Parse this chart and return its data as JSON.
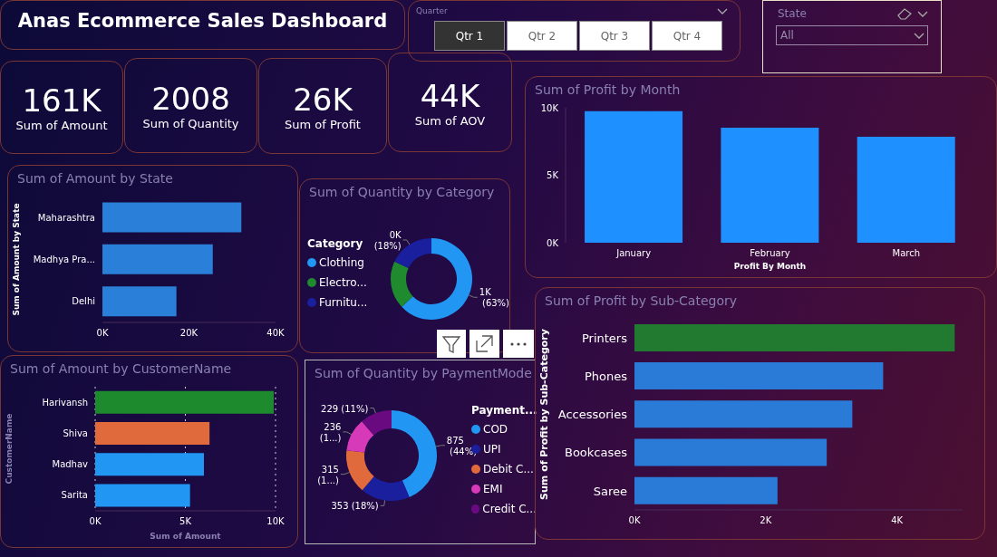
{
  "chart_data": [
    {
      "type": "other",
      "title": "Anas Ecommerce Sales Dashboard"
    },
    {
      "type": "other",
      "title": "Quarter",
      "annotations": [
        "Qtr 1",
        "Qtr 2",
        "Qtr 3",
        "Qtr 4"
      ]
    },
    {
      "type": "other",
      "title": "State",
      "annotations": [
        "All"
      ]
    },
    {
      "type": "other",
      "title": "Sum of Amount",
      "annotations": [
        "161K"
      ]
    },
    {
      "type": "other",
      "title": "Sum of Quantity",
      "annotations": [
        "2008"
      ]
    },
    {
      "type": "other",
      "title": "Sum of Profit",
      "annotations": [
        "26K"
      ]
    },
    {
      "type": "other",
      "title": "Sum of AOV",
      "annotations": [
        "44K"
      ]
    },
    {
      "type": "bar",
      "title": "Sum of Profit by Month",
      "xlabel": "Profit By Month",
      "categories": [
        "January",
        "February",
        "March"
      ],
      "values": [
        9750,
        8530,
        7850
      ],
      "color": "#1e90ff",
      "ylim": [
        0,
        10000
      ],
      "yticks": [
        {
          "value": 0,
          "label": "0K"
        },
        {
          "value": 5000,
          "label": "5K"
        },
        {
          "value": 10000,
          "label": "10K"
        }
      ],
      "grid": false
    },
    {
      "type": "bar",
      "orientation": "horizontal",
      "title": "Sum of Amount by State",
      "ylabel": "Sum of Amount by State",
      "categories": [
        "Maharashtra",
        "Madhya Pra...",
        "Delhi"
      ],
      "values": [
        32100,
        25500,
        17100
      ],
      "color": "#2a7fd8",
      "xlim": [
        0,
        40000
      ],
      "xticks": [
        {
          "value": 0,
          "label": "0K"
        },
        {
          "value": 20000,
          "label": "20K"
        },
        {
          "value": 40000,
          "label": "40K"
        }
      ],
      "grid": false
    },
    {
      "type": "donut",
      "title": "Sum of Quantity by Category",
      "legend_title": "Category",
      "legend": "left",
      "categories": [
        "Clothing",
        "Electro...",
        "Furnitu..."
      ],
      "values": [
        63,
        19,
        18
      ],
      "colors": [
        "#2196f3",
        "#1f8a2e",
        "#1a1f9e"
      ],
      "value_labels": [
        "1K (63%)",
        null,
        "0K (18%)"
      ]
    },
    {
      "type": "bar",
      "orientation": "horizontal",
      "title": "Sum of Amount by CustomerName",
      "xlabel": "Sum of Amount",
      "ylabel": "CustomerName",
      "categories": [
        "Harivansh",
        "Shiva",
        "Madhav",
        "Sarita"
      ],
      "values": [
        9900,
        6340,
        6030,
        5260
      ],
      "colors": [
        "#1e8a2e",
        "#e06a3c",
        "#2196f3",
        "#2196f3"
      ],
      "xlim": [
        0,
        10000
      ],
      "xticks": [
        {
          "value": 0,
          "label": "0K"
        },
        {
          "value": 5000,
          "label": "5K"
        },
        {
          "value": 10000,
          "label": "10K"
        }
      ],
      "grid": "x"
    },
    {
      "type": "donut",
      "title": "Sum of Quantity by PaymentMode",
      "legend_title": "Payment...",
      "legend": "right",
      "categories": [
        "COD",
        "UPI",
        "Debit C...",
        "EMI",
        "Credit C..."
      ],
      "values": [
        875,
        353,
        315,
        236,
        229
      ],
      "colors": [
        "#2196f3",
        "#1a1f9e",
        "#e06a3c",
        "#d63ab8",
        "#6a0a80"
      ],
      "value_labels": [
        "875 (44%)",
        "353 (18%)",
        "315 (1...)",
        "236 (1...)",
        "229 (11%)"
      ]
    },
    {
      "type": "bar",
      "orientation": "horizontal",
      "title": "Sum of Profit by Sub-Category",
      "ylabel": "Sum of Profit by Sub-Category",
      "categories": [
        "Printers",
        "Phones",
        "Accessories",
        "Bookcases",
        "Saree"
      ],
      "values": [
        4880,
        3790,
        3320,
        2930,
        2180
      ],
      "colors": [
        "#217a30",
        "#2a7bd8",
        "#2a7bd8",
        "#2a7bd8",
        "#2a7bd8"
      ],
      "xlim": [
        0,
        5000
      ],
      "xticks": [
        {
          "value": 0,
          "label": "0K"
        },
        {
          "value": 2000,
          "label": "2K"
        },
        {
          "value": 4000,
          "label": "4K"
        }
      ],
      "grid": false
    }
  ]
}
